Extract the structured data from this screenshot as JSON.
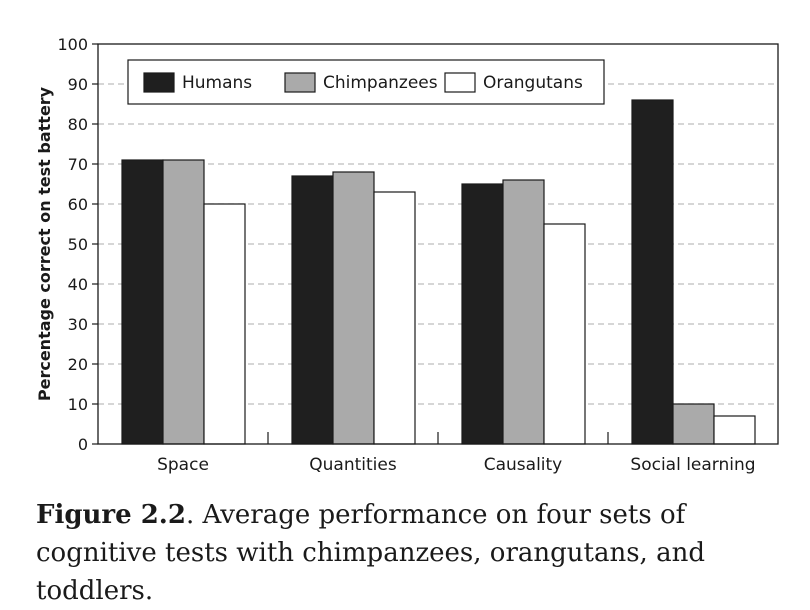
{
  "chart_data": {
    "type": "bar",
    "ylabel": "Percentage correct on test battery",
    "xlabel": "",
    "ylim": [
      0,
      100
    ],
    "yticks": [
      0,
      10,
      20,
      30,
      40,
      50,
      60,
      70,
      80,
      90,
      100
    ],
    "grid": "horizontal-dashed",
    "legend_position": "top-left",
    "categories": [
      "Space",
      "Quantities",
      "Causality",
      "Social learning"
    ],
    "series": [
      {
        "name": "Humans",
        "color": "#1f1f1f",
        "values": [
          71,
          67,
          65,
          86
        ]
      },
      {
        "name": "Chimpanzees",
        "color": "#aaaaaa",
        "values": [
          71,
          68,
          66,
          10
        ]
      },
      {
        "name": "Orangutans",
        "color": "#ffffff",
        "values": [
          60,
          63,
          55,
          7
        ]
      }
    ]
  },
  "caption": {
    "figure_label": "Figure 2.2",
    "text": ". Average performance on four sets of cognitive tests with chimpanzees, orangutans, and toddlers."
  }
}
